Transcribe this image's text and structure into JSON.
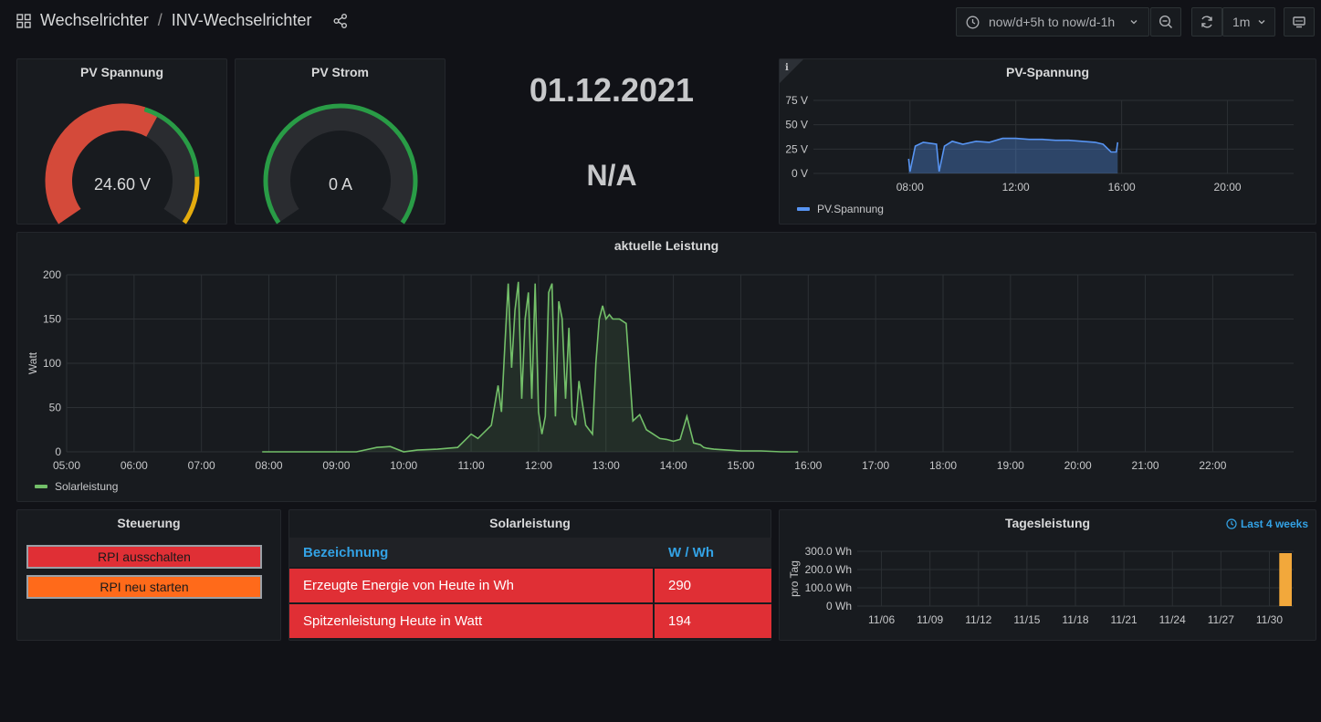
{
  "header": {
    "folder": "Wechselrichter",
    "separator": "/",
    "dashboard": "INV-Wechselrichter",
    "time_range": "now/d+5h to now/d-1h",
    "refresh_interval": "1m"
  },
  "gauges": [
    {
      "title": "PV Spannung",
      "value_text": "24.60 V",
      "value": 24.6,
      "min": 0,
      "max": 40,
      "color": "#d44a3a"
    },
    {
      "title": "PV Strom",
      "value_text": "0 A",
      "value": 0,
      "min": 0,
      "max": 10,
      "color": "#299c46"
    }
  ],
  "date_panel": {
    "date": "01.12.2021",
    "status": "N/A"
  },
  "pv_spannung": {
    "title": "PV-Spannung",
    "legend": "PV.Spannung",
    "color": "#5794f2",
    "chart_data": {
      "type": "area",
      "y_ticks": [
        "75 V",
        "50 V",
        "25 V",
        "0 V"
      ],
      "x_ticks": [
        "08:00",
        "12:00",
        "16:00",
        "20:00"
      ],
      "ylim": [
        0,
        75
      ],
      "x": [
        7.95,
        8.0,
        8.2,
        8.5,
        9.0,
        9.1,
        9.3,
        9.6,
        10.0,
        10.5,
        11.0,
        11.5,
        12.0,
        12.5,
        13.0,
        13.5,
        14.0,
        14.5,
        15.0,
        15.3,
        15.6,
        15.8,
        15.85
      ],
      "values": [
        15,
        2,
        28,
        32,
        30,
        2,
        28,
        33,
        30,
        33,
        32,
        36,
        36,
        35,
        35,
        34,
        34,
        33,
        32,
        30,
        22,
        22,
        32
      ]
    }
  },
  "leistung": {
    "title": "aktuelle Leistung",
    "ylabel": "Watt",
    "legend": "Solarleistung",
    "color": "#73bf69",
    "chart_data": {
      "type": "area",
      "y_ticks": [
        "200",
        "150",
        "100",
        "50",
        "0"
      ],
      "x_ticks": [
        "05:00",
        "06:00",
        "07:00",
        "08:00",
        "09:00",
        "10:00",
        "11:00",
        "12:00",
        "13:00",
        "14:00",
        "15:00",
        "16:00",
        "17:00",
        "18:00",
        "19:00",
        "20:00",
        "21:00",
        "22:00"
      ],
      "ylim": [
        0,
        200
      ],
      "x": [
        7.9,
        8.5,
        9.3,
        9.6,
        9.8,
        10.0,
        10.2,
        10.5,
        10.8,
        11.0,
        11.1,
        11.3,
        11.4,
        11.45,
        11.5,
        11.55,
        11.6,
        11.65,
        11.7,
        11.75,
        11.8,
        11.85,
        11.9,
        11.95,
        12.0,
        12.05,
        12.1,
        12.15,
        12.2,
        12.25,
        12.3,
        12.35,
        12.4,
        12.45,
        12.5,
        12.55,
        12.6,
        12.7,
        12.8,
        12.85,
        12.9,
        12.95,
        13.0,
        13.05,
        13.1,
        13.2,
        13.3,
        13.4,
        13.5,
        13.6,
        13.7,
        13.8,
        13.9,
        14.0,
        14.1,
        14.2,
        14.3,
        14.4,
        14.45,
        14.5,
        14.6,
        14.8,
        15.0,
        15.3,
        15.6,
        15.85
      ],
      "values": [
        0,
        0,
        0,
        5,
        6,
        0,
        2,
        3,
        5,
        20,
        15,
        30,
        75,
        45,
        120,
        190,
        95,
        160,
        192,
        60,
        150,
        180,
        60,
        190,
        45,
        20,
        40,
        180,
        190,
        40,
        170,
        150,
        60,
        140,
        40,
        30,
        80,
        30,
        20,
        100,
        150,
        165,
        150,
        155,
        150,
        150,
        145,
        35,
        42,
        25,
        20,
        15,
        14,
        12,
        14,
        40,
        10,
        8,
        5,
        4,
        3,
        2,
        1,
        1,
        0,
        0
      ]
    }
  },
  "steuerung": {
    "title": "Steuerung",
    "buttons": [
      {
        "label": "RPI ausschalten",
        "color": "#e02f35"
      },
      {
        "label": "RPI neu starten",
        "color": "#ff6a1a"
      }
    ]
  },
  "solar_table": {
    "title": "Solarleistung",
    "columns": [
      "Bezeichnung",
      "W / Wh"
    ],
    "rows": [
      [
        "Erzeugte Energie von Heute in Wh",
        "290"
      ],
      [
        "Spitzenleistung Heute in Watt",
        "194"
      ]
    ]
  },
  "tages": {
    "title": "Tagesleistung",
    "time_range": "Last 4 weeks",
    "ylabel": "pro Tag",
    "color": "#f2a83b",
    "chart_data": {
      "type": "bar",
      "y_ticks": [
        "300.0 Wh",
        "200.0 Wh",
        "100.0 Wh",
        "0 Wh"
      ],
      "x_ticks": [
        "11/06",
        "11/09",
        "11/12",
        "11/15",
        "11/18",
        "11/21",
        "11/24",
        "11/27",
        "11/30"
      ],
      "ylim": [
        0,
        300
      ],
      "categories": [
        "12/01"
      ],
      "values": [
        290
      ]
    }
  }
}
